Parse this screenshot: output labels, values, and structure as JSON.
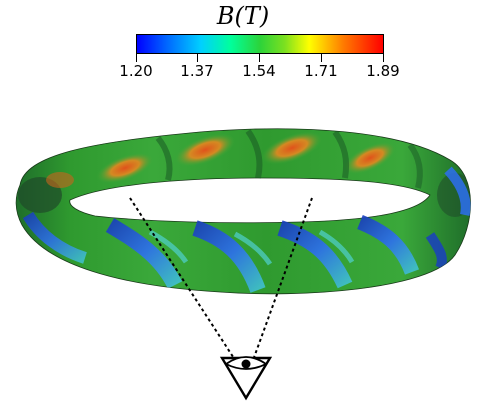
{
  "colorbar": {
    "title": "B(T)",
    "ticks": [
      "1.20",
      "1.37",
      "1.54",
      "1.71",
      "1.89"
    ],
    "min": 1.2,
    "max": 1.89,
    "colormap": [
      "#0000ff",
      "#00d0ff",
      "#00ff9c",
      "#2cd33a",
      "#ffff00",
      "#ff7a00",
      "#ff0000"
    ]
  },
  "colors": {
    "band_green": "#2f9a2f",
    "band_blue": "#1a4fd8",
    "band_red": "#d1531c",
    "band_cyan": "#30c8c8",
    "sight_lines": "#000000"
  }
}
